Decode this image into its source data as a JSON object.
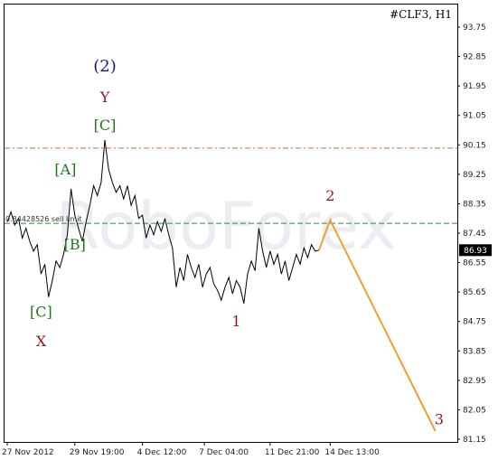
{
  "chart_data": {
    "type": "line",
    "title": "#CLF3, H1",
    "current_price_label": "86.93",
    "current_price": 86.93,
    "line_label": "0.84428526 sell limit",
    "ylim": [
      81.15,
      94.0
    ],
    "y_ticks": [
      "93.75",
      "92.85",
      "91.95",
      "91.05",
      "90.15",
      "89.25",
      "88.35",
      "87.45",
      "86.55",
      "85.65",
      "84.75",
      "83.85",
      "82.95",
      "82.05",
      "81.15"
    ],
    "x_ticks": [
      "27 Nov 2012",
      "29 Nov 19:00",
      "4 Dec 12:00",
      "7 Dec 04:00",
      "11 Dec 21:00",
      "14 Dec 13:00"
    ],
    "watermark": "RoboForex",
    "colors": {
      "price": "#000000",
      "forecast": "#f0a030",
      "resistance": "#e06030",
      "support": "#2e8b2e",
      "wave_green": "#1e7a1e",
      "wave_red": "#8b1a1a",
      "wave_blue": "#1a1a7a",
      "current_box": "#000000"
    },
    "levels": {
      "resistance": 90.05,
      "support": 87.75
    },
    "price_series": [
      [
        0,
        87.8
      ],
      [
        2,
        88.1
      ],
      [
        4,
        87.7
      ],
      [
        6,
        87.9
      ],
      [
        8,
        87.3
      ],
      [
        10,
        87.6
      ],
      [
        12,
        87.2
      ],
      [
        14,
        86.9
      ],
      [
        16,
        87.1
      ],
      [
        18,
        86.2
      ],
      [
        20,
        86.5
      ],
      [
        22,
        85.5
      ],
      [
        24,
        86.0
      ],
      [
        26,
        86.6
      ],
      [
        28,
        86.4
      ],
      [
        30,
        86.8
      ],
      [
        32,
        87.4
      ],
      [
        34,
        88.8
      ],
      [
        36,
        88.0
      ],
      [
        38,
        87.6
      ],
      [
        40,
        87.2
      ],
      [
        42,
        87.8
      ],
      [
        44,
        88.3
      ],
      [
        46,
        88.9
      ],
      [
        48,
        88.6
      ],
      [
        50,
        89.0
      ],
      [
        52,
        90.3
      ],
      [
        54,
        89.4
      ],
      [
        56,
        89.0
      ],
      [
        58,
        88.7
      ],
      [
        60,
        88.9
      ],
      [
        62,
        88.5
      ],
      [
        64,
        88.9
      ],
      [
        66,
        88.3
      ],
      [
        68,
        88.6
      ],
      [
        70,
        87.9
      ],
      [
        72,
        88.0
      ],
      [
        74,
        87.3
      ],
      [
        76,
        87.7
      ],
      [
        78,
        87.4
      ],
      [
        80,
        87.8
      ],
      [
        82,
        87.5
      ],
      [
        84,
        87.9
      ],
      [
        86,
        87.4
      ],
      [
        88,
        87.0
      ],
      [
        90,
        85.8
      ],
      [
        92,
        86.4
      ],
      [
        94,
        86.0
      ],
      [
        96,
        86.8
      ],
      [
        98,
        86.4
      ],
      [
        100,
        86.1
      ],
      [
        102,
        86.5
      ],
      [
        104,
        85.8
      ],
      [
        106,
        86.2
      ],
      [
        108,
        86.4
      ],
      [
        110,
        85.9
      ],
      [
        112,
        85.7
      ],
      [
        114,
        85.4
      ],
      [
        116,
        85.8
      ],
      [
        118,
        86.1
      ],
      [
        120,
        85.6
      ],
      [
        122,
        86.0
      ],
      [
        124,
        85.8
      ],
      [
        126,
        85.3
      ],
      [
        128,
        86.2
      ],
      [
        130,
        86.6
      ],
      [
        132,
        86.3
      ],
      [
        134,
        87.6
      ],
      [
        136,
        86.9
      ],
      [
        138,
        86.4
      ],
      [
        140,
        86.9
      ],
      [
        142,
        86.5
      ],
      [
        144,
        86.8
      ],
      [
        146,
        86.2
      ],
      [
        148,
        86.6
      ],
      [
        150,
        86.0
      ],
      [
        152,
        86.4
      ],
      [
        154,
        86.8
      ],
      [
        156,
        86.5
      ],
      [
        158,
        87.0
      ],
      [
        160,
        86.7
      ],
      [
        162,
        87.1
      ],
      [
        164,
        86.9
      ],
      [
        166,
        86.93
      ]
    ],
    "forecast_series": [
      [
        166,
        86.93
      ],
      [
        172,
        87.85
      ],
      [
        228,
        81.4
      ]
    ],
    "wave_labels": [
      {
        "text": "(2)",
        "x": 52,
        "y": 92.4,
        "color": "wave_blue"
      },
      {
        "text": "Y",
        "x": 52,
        "y": 91.45,
        "color": "wave_red"
      },
      {
        "text": "[C]",
        "x": 52,
        "y": 90.6,
        "color": "wave_green"
      },
      {
        "text": "[A]",
        "x": 31,
        "y": 89.25,
        "color": "wave_green"
      },
      {
        "text": "[B]",
        "x": 36,
        "y": 86.95,
        "color": "wave_green"
      },
      {
        "text": "[C]",
        "x": 18,
        "y": 84.9,
        "color": "wave_green"
      },
      {
        "text": "X",
        "x": 18,
        "y": 84.0,
        "color": "wave_red"
      },
      {
        "text": "1",
        "x": 122,
        "y": 84.6,
        "color": "wave_red"
      },
      {
        "text": "2",
        "x": 172,
        "y": 88.45,
        "color": "wave_red"
      },
      {
        "text": "3",
        "x": 230,
        "y": 81.6,
        "color": "wave_red"
      }
    ]
  }
}
